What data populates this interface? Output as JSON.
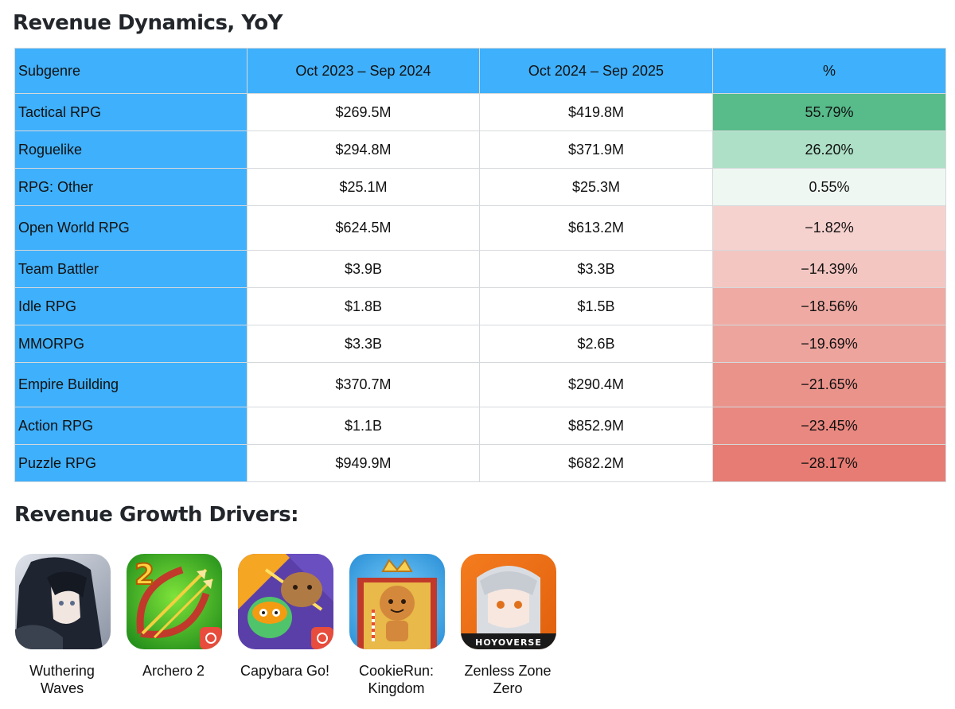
{
  "title": "Revenue Dynamics, YoY",
  "table": {
    "headers": [
      "Subgenre",
      "Oct 2023 – Sep 2024",
      "Oct 2024 – Sep 2025",
      "%"
    ],
    "rows": [
      {
        "name": "Tactical RPG",
        "prev": "$269.5M",
        "curr": "$419.8M",
        "pct": "55.79%",
        "color": "#57bb8a"
      },
      {
        "name": "Roguelike",
        "prev": "$294.8M",
        "curr": "$371.9M",
        "pct": "26.20%",
        "color": "#ade0c6"
      },
      {
        "name": "RPG: Other",
        "prev": "$25.1M",
        "curr": "$25.3M",
        "pct": "0.55%",
        "color": "#eef7f1"
      },
      {
        "name": "Open World RPG",
        "prev": "$624.5M",
        "curr": "$613.2M",
        "pct": "−1.82%",
        "color": "#f6d2cf"
      },
      {
        "name": "Team Battler",
        "prev": "$3.9B",
        "curr": "$3.3B",
        "pct": "−14.39%",
        "color": "#f3c6c2"
      },
      {
        "name": "Idle RPG",
        "prev": "$1.8B",
        "curr": "$1.5B",
        "pct": "−18.56%",
        "color": "#eeaaa3"
      },
      {
        "name": "MMORPG",
        "prev": "$3.3B",
        "curr": "$2.6B",
        "pct": "−19.69%",
        "color": "#eca49d"
      },
      {
        "name": "Empire Building",
        "prev": "$370.7M",
        "curr": "$290.4M",
        "pct": "−21.65%",
        "color": "#ea938b"
      },
      {
        "name": "Action RPG",
        "prev": "$1.1B",
        "curr": "$852.9M",
        "pct": "−23.45%",
        "color": "#e98880"
      },
      {
        "name": "Puzzle RPG",
        "prev": "$949.9M",
        "curr": "$682.2M",
        "pct": "−28.17%",
        "color": "#e67c73"
      }
    ]
  },
  "drivers": {
    "title": "Revenue Growth Drivers:",
    "apps": [
      {
        "label": "Wuthering Waves",
        "icon": "wuthering-waves-app-icon"
      },
      {
        "label": "Archero 2",
        "icon": "archero-2-app-icon",
        "badge": "2"
      },
      {
        "label": "Capybara Go!",
        "icon": "capybara-go-app-icon"
      },
      {
        "label": "CookieRun: Kingdom",
        "icon": "cookierun-kingdom-app-icon"
      },
      {
        "label": "Zenless Zone Zero",
        "icon": "zenless-zone-zero-app-icon",
        "badge": "HOYOVERSE"
      }
    ]
  }
}
